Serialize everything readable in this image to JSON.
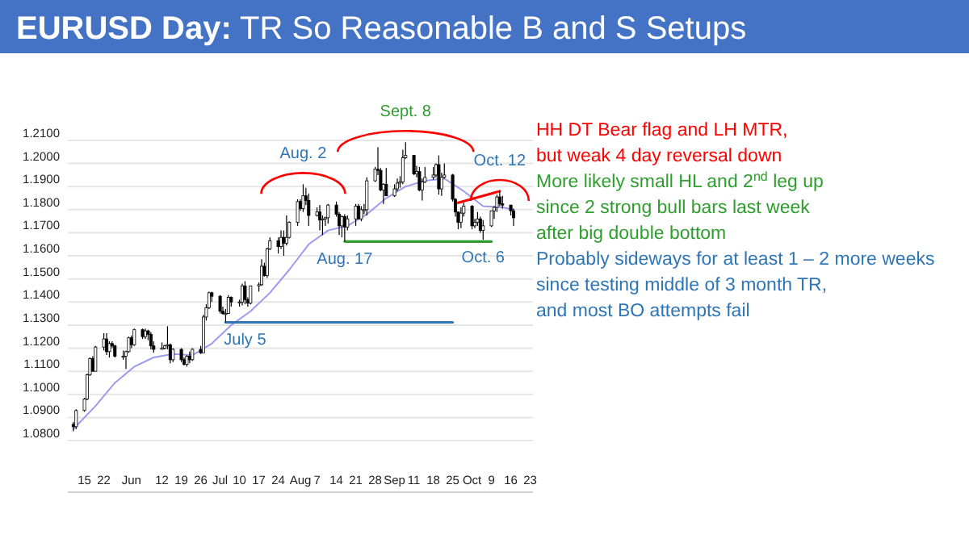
{
  "chart_data": {
    "type": "candlestick",
    "title": "EURUSD Day: TR So Reasonable B and S Setups",
    "x": [
      "--05-11",
      "--05-12",
      "--05-15",
      "--05-16",
      "--05-17",
      "--05-18",
      "--05-19",
      "--05-22",
      "--05-23",
      "--05-24",
      "--05-25",
      "--05-26",
      "--05-29",
      "--05-30",
      "--05-31",
      "--06-01",
      "--06-02",
      "--06-05",
      "--06-06",
      "--06-07",
      "--06-08",
      "--06-09",
      "--06-12",
      "--06-13",
      "--06-14",
      "--06-15",
      "--06-16",
      "--06-19",
      "--06-20",
      "--06-21",
      "--06-22",
      "--06-23",
      "--06-26",
      "--06-27",
      "--06-28",
      "--06-29",
      "--06-30",
      "--07-03",
      "--07-04",
      "--07-05",
      "--07-06",
      "--07-07",
      "--07-10",
      "--07-11",
      "--07-12",
      "--07-13",
      "--07-14",
      "--07-17",
      "--07-18",
      "--07-19",
      "--07-20",
      "--07-21",
      "--07-24",
      "--07-25",
      "--07-26",
      "--07-27",
      "--07-28",
      "--07-31",
      "--08-01",
      "--08-02",
      "--08-03",
      "--08-04",
      "--08-07",
      "--08-08",
      "--08-09",
      "--08-10",
      "--08-11",
      "--08-14",
      "--08-15",
      "--08-16",
      "--08-17",
      "--08-18",
      "--08-21",
      "--08-22",
      "--08-23",
      "--08-24",
      "--08-25",
      "--08-28",
      "--08-29",
      "--08-30",
      "--08-31",
      "--09-01",
      "--09-04",
      "--09-05",
      "--09-06",
      "--09-07",
      "--09-08",
      "--09-11",
      "--09-12",
      "--09-13",
      "--09-14",
      "--09-15",
      "--09-18",
      "--09-19",
      "--09-20",
      "--09-21",
      "--09-22",
      "--09-25",
      "--09-26",
      "--09-27",
      "--09-28",
      "--09-29",
      "--10-02",
      "--10-03",
      "--10-04",
      "--10-05",
      "--10-06",
      "--10-09",
      "--10-10",
      "--10-11",
      "--10-12",
      "--10-13",
      "--10-16",
      "--10-17"
    ],
    "ohlc": [
      [
        1.087,
        1.088,
        1.084,
        1.086
      ],
      [
        1.086,
        1.0935,
        1.085,
        1.093
      ],
      [
        1.093,
        1.0985,
        1.0925,
        1.098
      ],
      [
        1.098,
        1.109,
        1.0975,
        1.1085
      ],
      [
        1.1085,
        1.116,
        1.108,
        1.1155
      ],
      [
        1.1155,
        1.1165,
        1.11,
        1.11
      ],
      [
        1.11,
        1.121,
        1.11,
        1.1205
      ],
      [
        1.1205,
        1.1265,
        1.119,
        1.124
      ],
      [
        1.124,
        1.1265,
        1.117,
        1.1185
      ],
      [
        1.1185,
        1.123,
        1.116,
        1.122
      ],
      [
        1.122,
        1.123,
        1.12,
        1.121
      ],
      [
        1.121,
        1.1215,
        1.116,
        1.1165
      ],
      [
        1.1165,
        1.119,
        1.115,
        1.1165
      ],
      [
        1.1165,
        1.119,
        1.111,
        1.1185
      ],
      [
        1.1185,
        1.125,
        1.118,
        1.1245
      ],
      [
        1.1245,
        1.1255,
        1.12,
        1.1215
      ],
      [
        1.1215,
        1.1285,
        1.121,
        1.128
      ],
      [
        1.128,
        1.1285,
        1.124,
        1.125
      ],
      [
        1.125,
        1.1285,
        1.124,
        1.1275
      ],
      [
        1.1275,
        1.128,
        1.1235,
        1.126
      ],
      [
        1.126,
        1.127,
        1.1195,
        1.121
      ],
      [
        1.121,
        1.123,
        1.118,
        1.1195
      ],
      [
        1.1195,
        1.1225,
        1.1195,
        1.12
      ],
      [
        1.12,
        1.1215,
        1.1195,
        1.121
      ],
      [
        1.121,
        1.1295,
        1.1195,
        1.1215
      ],
      [
        1.1215,
        1.122,
        1.1135,
        1.115
      ],
      [
        1.115,
        1.12,
        1.114,
        1.1195
      ],
      [
        1.1195,
        1.12,
        1.114,
        1.115
      ],
      [
        1.115,
        1.116,
        1.1125,
        1.113
      ],
      [
        1.113,
        1.117,
        1.112,
        1.1165
      ],
      [
        1.1165,
        1.1185,
        1.1135,
        1.115
      ],
      [
        1.115,
        1.12,
        1.1145,
        1.1195
      ],
      [
        1.1195,
        1.121,
        1.1175,
        1.118
      ],
      [
        1.118,
        1.1345,
        1.118,
        1.1335
      ],
      [
        1.1335,
        1.139,
        1.132,
        1.1375
      ],
      [
        1.1375,
        1.1445,
        1.137,
        1.144
      ],
      [
        1.144,
        1.1445,
        1.14,
        1.1425
      ],
      [
        1.1425,
        1.143,
        1.135,
        1.136
      ],
      [
        1.136,
        1.138,
        1.1345,
        1.135
      ],
      [
        1.135,
        1.137,
        1.1312,
        1.135
      ],
      [
        1.135,
        1.143,
        1.135,
        1.142
      ],
      [
        1.142,
        1.1425,
        1.138,
        1.14
      ],
      [
        1.14,
        1.141,
        1.138,
        1.14
      ],
      [
        1.14,
        1.148,
        1.1385,
        1.147
      ],
      [
        1.147,
        1.149,
        1.139,
        1.141
      ],
      [
        1.141,
        1.142,
        1.138,
        1.1395
      ],
      [
        1.1395,
        1.147,
        1.139,
        1.147
      ],
      [
        1.147,
        1.1485,
        1.1445,
        1.1475
      ],
      [
        1.1475,
        1.1585,
        1.147,
        1.1555
      ],
      [
        1.1555,
        1.157,
        1.151,
        1.1515
      ],
      [
        1.1515,
        1.1635,
        1.1505,
        1.163
      ],
      [
        1.163,
        1.168,
        1.1625,
        1.1665
      ],
      [
        1.1665,
        1.168,
        1.161,
        1.164
      ],
      [
        1.164,
        1.171,
        1.163,
        1.168
      ],
      [
        1.168,
        1.171,
        1.16,
        1.1655
      ],
      [
        1.1655,
        1.1775,
        1.1645,
        1.168
      ],
      [
        1.168,
        1.175,
        1.1675,
        1.1745
      ],
      [
        1.1745,
        1.1845,
        1.173,
        1.1835
      ],
      [
        1.1835,
        1.1845,
        1.1795,
        1.1805
      ],
      [
        1.1805,
        1.191,
        1.179,
        1.186
      ],
      [
        1.186,
        1.1895,
        1.182,
        1.184
      ],
      [
        1.184,
        1.187,
        1.173,
        1.1775
      ],
      [
        1.1775,
        1.181,
        1.177,
        1.179
      ],
      [
        1.179,
        1.182,
        1.171,
        1.1755
      ],
      [
        1.1755,
        1.1775,
        1.169,
        1.176
      ],
      [
        1.176,
        1.177,
        1.173,
        1.1765
      ],
      [
        1.1765,
        1.1825,
        1.174,
        1.182
      ],
      [
        1.182,
        1.1835,
        1.177,
        1.178
      ],
      [
        1.178,
        1.179,
        1.169,
        1.173
      ],
      [
        1.173,
        1.1775,
        1.168,
        1.177
      ],
      [
        1.177,
        1.178,
        1.1662,
        1.1725
      ],
      [
        1.1725,
        1.1775,
        1.171,
        1.176
      ],
      [
        1.176,
        1.1825,
        1.173,
        1.1815
      ],
      [
        1.1815,
        1.1825,
        1.176,
        1.176
      ],
      [
        1.176,
        1.1815,
        1.175,
        1.18
      ],
      [
        1.18,
        1.1825,
        1.178,
        1.18
      ],
      [
        1.18,
        1.194,
        1.1775,
        1.1925
      ],
      [
        1.1925,
        1.1985,
        1.192,
        1.1975
      ],
      [
        1.1975,
        1.207,
        1.195,
        1.197
      ],
      [
        1.197,
        1.198,
        1.188,
        1.1885
      ],
      [
        1.1885,
        1.1915,
        1.1825,
        1.191
      ],
      [
        1.191,
        1.198,
        1.186,
        1.186
      ],
      [
        1.186,
        1.191,
        1.1855,
        1.189
      ],
      [
        1.189,
        1.1935,
        1.188,
        1.1915
      ],
      [
        1.1915,
        1.1945,
        1.1895,
        1.192
      ],
      [
        1.192,
        1.206,
        1.191,
        1.2025
      ],
      [
        1.2025,
        1.2092,
        1.202,
        1.2035
      ],
      [
        1.2035,
        1.2035,
        1.195,
        1.1955
      ],
      [
        1.1955,
        1.199,
        1.194,
        1.1965
      ],
      [
        1.1965,
        1.1985,
        1.188,
        1.1885
      ],
      [
        1.1885,
        1.1935,
        1.184,
        1.192
      ],
      [
        1.192,
        1.1985,
        1.1915,
        1.194
      ],
      [
        1.194,
        1.1985,
        1.193,
        1.195
      ],
      [
        1.195,
        1.2,
        1.194,
        1.1995
      ],
      [
        1.1995,
        1.2035,
        1.1865,
        1.189
      ],
      [
        1.189,
        1.196,
        1.186,
        1.194
      ],
      [
        1.194,
        1.2,
        1.1935,
        1.195
      ],
      [
        1.195,
        1.1955,
        1.1835,
        1.1845
      ],
      [
        1.1845,
        1.185,
        1.177,
        1.179
      ],
      [
        1.179,
        1.179,
        1.1715,
        1.1745
      ],
      [
        1.1745,
        1.181,
        1.172,
        1.1785
      ],
      [
        1.1785,
        1.183,
        1.177,
        1.1815
      ],
      [
        1.1815,
        1.182,
        1.1715,
        1.173
      ],
      [
        1.173,
        1.176,
        1.172,
        1.1745
      ],
      [
        1.1745,
        1.179,
        1.173,
        1.176
      ],
      [
        1.176,
        1.177,
        1.17,
        1.171
      ],
      [
        1.171,
        1.1755,
        1.1669,
        1.173
      ],
      [
        1.173,
        1.1795,
        1.1725,
        1.1795
      ],
      [
        1.1795,
        1.1815,
        1.176,
        1.181
      ],
      [
        1.181,
        1.1865,
        1.179,
        1.1855
      ],
      [
        1.1855,
        1.188,
        1.1815,
        1.1825
      ],
      [
        1.1825,
        1.186,
        1.1805,
        1.182
      ],
      [
        1.182,
        1.182,
        1.1775,
        1.1795
      ],
      [
        1.1795,
        1.1805,
        1.173,
        1.1765
      ]
    ],
    "series": [
      {
        "type": "line",
        "color": "#9b9bef",
        "x": [
          "--05-11",
          "--05-19",
          "--05-26",
          "--06-02",
          "--06-09",
          "--06-16",
          "--06-23",
          "--06-30",
          "--07-07",
          "--07-14",
          "--07-21",
          "--07-28",
          "--08-04",
          "--08-11",
          "--08-18",
          "--08-25",
          "--09-01",
          "--09-08",
          "--09-15",
          "--09-22",
          "--09-29",
          "--10-06",
          "--10-13",
          "--10-17"
        ],
        "values": [
          1.085,
          1.095,
          1.105,
          1.112,
          1.116,
          1.1175,
          1.117,
          1.122,
          1.13,
          1.136,
          1.144,
          1.154,
          1.165,
          1.171,
          1.173,
          1.178,
          1.185,
          1.19,
          1.1925,
          1.1935,
          1.188,
          1.1815,
          1.181,
          1.18
        ]
      },
      {
        "type": "line",
        "color": "#2e75b6",
        "x": [
          "--07-05",
          "--09-25"
        ],
        "values": [
          1.1312,
          1.1312
        ]
      },
      {
        "type": "line",
        "color": "#2e9e2e",
        "x": [
          "--08-17",
          "--10-09"
        ],
        "values": [
          1.1662,
          1.1662
        ]
      },
      {
        "type": "line",
        "color": "#ff0000",
        "x": [
          "--09-27",
          "--10-12"
        ],
        "values": [
          1.183,
          1.188
        ]
      }
    ],
    "xlim": [
      "--05-09",
      "--10-24"
    ],
    "xticks": [
      {
        "value": "--05-15",
        "label": "15"
      },
      {
        "value": "--05-22",
        "label": "22"
      },
      {
        "value": "--06-01",
        "label": "Jun"
      },
      {
        "value": "--06-12",
        "label": "12"
      },
      {
        "value": "--06-19",
        "label": "19"
      },
      {
        "value": "--06-26",
        "label": "26"
      },
      {
        "value": "--07-03",
        "label": "Jul"
      },
      {
        "value": "--07-10",
        "label": "10"
      },
      {
        "value": "--07-17",
        "label": "17"
      },
      {
        "value": "--07-24",
        "label": "24"
      },
      {
        "value": "--08-01",
        "label": "Aug"
      },
      {
        "value": "--08-07",
        "label": "7"
      },
      {
        "value": "--08-14",
        "label": "14"
      },
      {
        "value": "--08-21",
        "label": "21"
      },
      {
        "value": "--08-28",
        "label": "28"
      },
      {
        "value": "--09-04",
        "label": "Sep"
      },
      {
        "value": "--09-11",
        "label": "11"
      },
      {
        "value": "--09-18",
        "label": "18"
      },
      {
        "value": "--09-25",
        "label": "25"
      },
      {
        "value": "--10-02",
        "label": "Oct"
      },
      {
        "value": "--10-09",
        "label": "9"
      },
      {
        "value": "--10-16",
        "label": "16"
      },
      {
        "value": "--10-23",
        "label": "23"
      }
    ],
    "ylim": [
      1.08,
      1.21
    ],
    "yticks": [
      {
        "value": 1.08,
        "label": "1.0800"
      },
      {
        "value": 1.09,
        "label": "1.0900"
      },
      {
        "value": 1.1,
        "label": "1.1000"
      },
      {
        "value": 1.11,
        "label": "1.1100"
      },
      {
        "value": 1.12,
        "label": "1.1200"
      },
      {
        "value": 1.13,
        "label": "1.1300"
      },
      {
        "value": 1.14,
        "label": "1.1400"
      },
      {
        "value": 1.15,
        "label": "1.1500"
      },
      {
        "value": 1.16,
        "label": "1.1600"
      },
      {
        "value": 1.17,
        "label": "1.1700"
      },
      {
        "value": 1.18,
        "label": "1.1800"
      },
      {
        "value": 1.19,
        "label": "1.1900"
      },
      {
        "value": 1.2,
        "label": "1.2000"
      },
      {
        "value": 1.21,
        "label": "1.2100"
      }
    ],
    "grid": "y",
    "annotations": [
      {
        "text": "Aug. 2",
        "x": "--08-02",
        "y": 1.191
      },
      {
        "text": "Sept. 8",
        "x": "--09-08",
        "y": 1.2092
      },
      {
        "text": "Oct. 12",
        "x": "--10-12",
        "y": 1.188
      },
      {
        "text": "Aug. 17",
        "x": "--08-17",
        "y": 1.1662
      },
      {
        "text": "Oct. 6",
        "x": "--10-06",
        "y": 1.1669
      },
      {
        "text": "July 5",
        "x": "--07-05",
        "y": 1.1312
      },
      "HH DT Bear flag and LH MTR,",
      "but weak 4 day reversal down",
      "More likely small HL and 2$^{nd}$ leg up",
      "since 2 strong bull bars last week",
      "after big double bottom",
      "Probably sideways for at least 1 – 2 more weeks",
      "since testing middle of 3 month TR,",
      "and most BO attempts fail"
    ]
  }
}
